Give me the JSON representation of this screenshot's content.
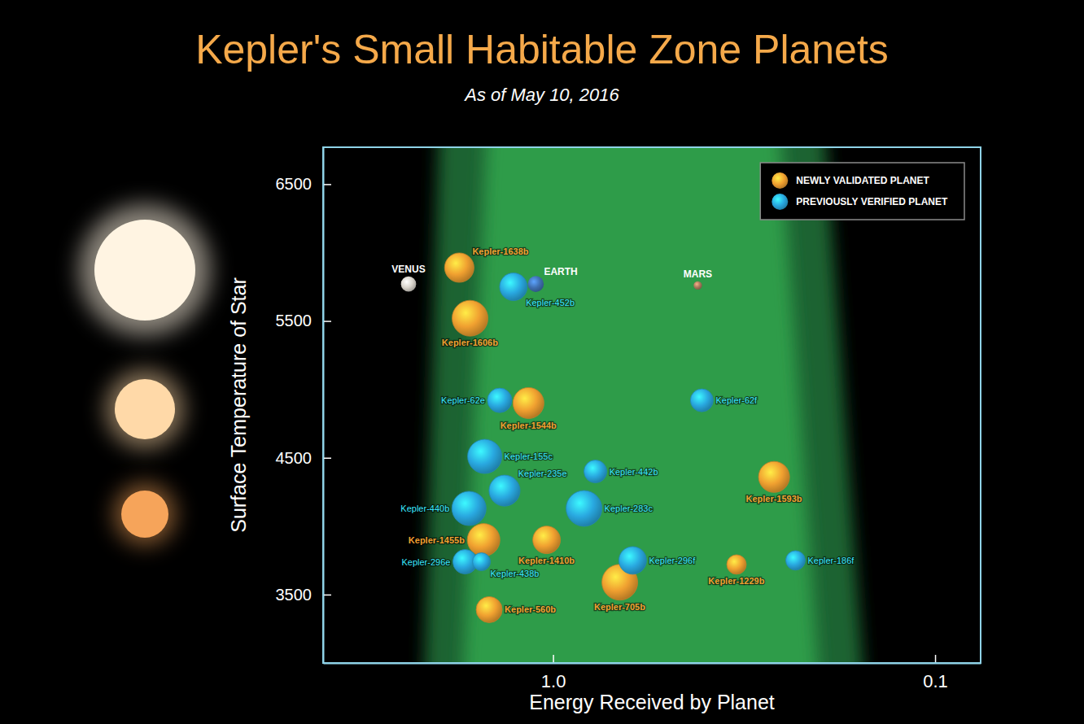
{
  "chart_data": {
    "type": "scatter",
    "title": "Kepler's Small Habitable Zone Planets",
    "subtitle": "As of May 10, 2016",
    "x_label": "Energy Received by Planet",
    "y_label": "Surface Temperature of Star",
    "log": "x",
    "xlim": [
      4,
      0.076
    ],
    "xticks": [
      {
        "value": 1,
        "label": "1.0"
      },
      0.1
    ],
    "ylim": [
      3000,
      6770
    ],
    "yticks": [
      3500,
      4500,
      5500,
      6500
    ],
    "legend": "top-right",
    "series": [
      {
        "name": "NEWLY VALIDATED PLANET",
        "color": "#f0a030",
        "labels": [
          "Kepler-1638b",
          "Kepler-1606b",
          "Kepler-1544b",
          "Kepler-1593b",
          "Kepler-1455b",
          "Kepler-1410b",
          "Kepler-1229b",
          "Kepler-705b",
          "Kepler-560b"
        ],
        "x": [
          1.76,
          1.65,
          1.16,
          0.264,
          1.52,
          1.04,
          0.331,
          0.669,
          1.47
        ],
        "values": [
          5890,
          5520,
          4900,
          4360,
          3900,
          3900,
          3720,
          3590,
          3390
        ],
        "sizes": [
          1.84,
          2.24,
          1.94,
          1.94,
          2.04,
          1.73,
          1.22,
          2.24,
          1.63
        ]
      },
      {
        "name": "PREVIOUSLY VERIFIED PLANET",
        "color": "#29a8e0",
        "labels": [
          "Kepler-452b",
          "Kepler-62e",
          "Kepler-62f",
          "Kepler-155c",
          "Kepler-442b",
          "Kepler-235e",
          "Kepler-440b",
          "Kepler-283c",
          "Kepler-296e",
          "Kepler-438b",
          "Kepler-296f",
          "Kepler-186f"
        ],
        "x": [
          1.27,
          1.38,
          0.408,
          1.51,
          0.775,
          1.34,
          1.66,
          0.83,
          1.7,
          1.54,
          0.619,
          0.232
        ],
        "values": [
          5750,
          4920,
          4920,
          4510,
          4400,
          4260,
          4130,
          4130,
          3740,
          3740,
          3750,
          3750
        ],
        "sizes": [
          1.73,
          1.53,
          1.43,
          2.14,
          1.43,
          1.94,
          2.14,
          2.24,
          1.53,
          1.12,
          1.73,
          1.22
        ]
      }
    ],
    "reference_planets": {
      "labels": [
        "VENUS",
        "EARTH",
        "MARS"
      ],
      "x": [
        2.39,
        1.11,
        0.418
      ],
      "values": [
        5770,
        5770,
        5760
      ],
      "sizes": [
        0.95,
        1.0,
        0.53
      ],
      "colors": [
        "#d9d4cc",
        "#3f6fb0",
        "#a8785c"
      ]
    }
  }
}
